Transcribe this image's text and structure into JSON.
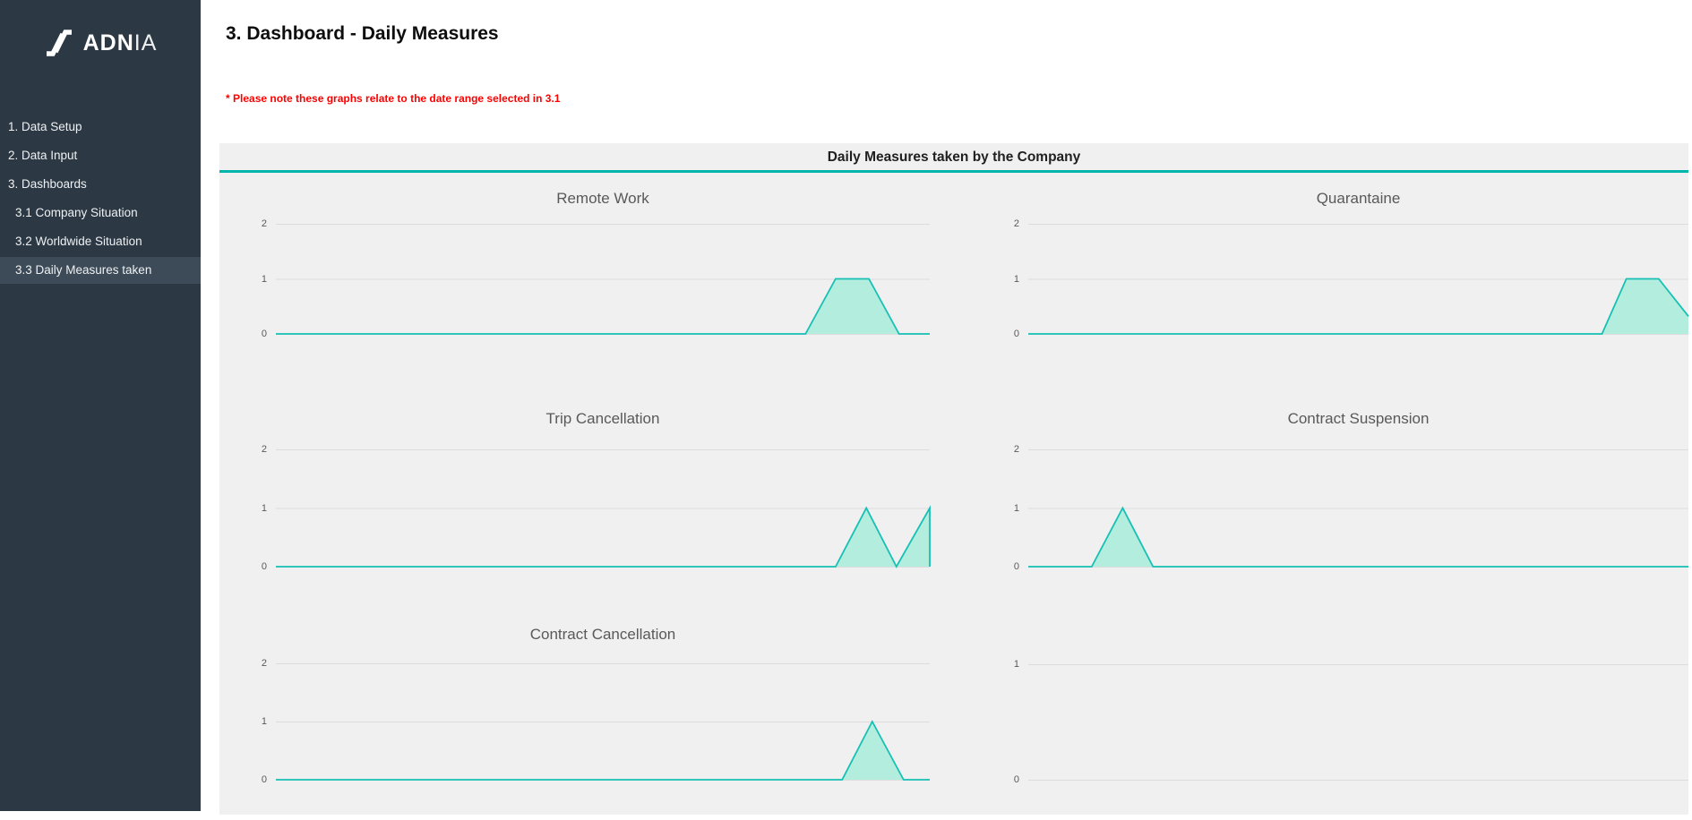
{
  "sidebar": {
    "logo": {
      "bold": "ADN",
      "light": "IA"
    },
    "items": [
      {
        "label": "1. Data Setup",
        "indent": false,
        "active": false
      },
      {
        "label": "2. Data Input",
        "indent": false,
        "active": false
      },
      {
        "label": "3. Dashboards",
        "indent": false,
        "active": false
      },
      {
        "label": "3.1 Company Situation",
        "indent": true,
        "active": false
      },
      {
        "label": "3.2 Worldwide Situation",
        "indent": true,
        "active": false
      },
      {
        "label": "3.3 Daily Measures taken",
        "indent": true,
        "active": true
      }
    ]
  },
  "header": {
    "title": "3. Dashboard - Daily Measures",
    "note": "* Please note these graphs relate to the date range selected in 3.1"
  },
  "panel": {
    "title": "Daily Measures taken by the Company"
  },
  "colors": {
    "sidebar_bg": "#2c3844",
    "sidebar_active_bg": "#3d4a57",
    "sidebar_text": "#eef1f3",
    "accent_teal": "#00b5ac",
    "series_stroke": "#16c0b4",
    "series_fill": "#b3edde",
    "gridline": "#dcdcdc",
    "panel_bg": "#f0f0f0",
    "chart_text": "#595959",
    "note_red": "#ff0000"
  },
  "chart_data": [
    {
      "type": "area",
      "title": "Remote Work",
      "yticks": [
        2,
        1,
        0
      ],
      "ylim": [
        0,
        2
      ],
      "grid": true,
      "legend": "none",
      "points": [
        [
          0,
          0
        ],
        [
          0.81,
          0
        ],
        [
          0.856,
          1
        ],
        [
          0.907,
          1
        ],
        [
          0.953,
          0
        ],
        [
          1,
          0
        ]
      ]
    },
    {
      "type": "area",
      "title": "Quarantaine",
      "yticks": [
        2,
        1,
        0
      ],
      "ylim": [
        0,
        2
      ],
      "grid": true,
      "legend": "none",
      "points": [
        [
          0,
          0
        ],
        [
          0.869,
          0
        ],
        [
          0.906,
          1
        ],
        [
          0.955,
          1
        ],
        [
          1,
          0.32
        ]
      ]
    },
    {
      "type": "area",
      "title": "Trip Cancellation",
      "yticks": [
        2,
        1,
        0
      ],
      "ylim": [
        0,
        2
      ],
      "grid": true,
      "legend": "none",
      "points": [
        [
          0,
          0
        ],
        [
          0.856,
          0
        ],
        [
          0.903,
          1
        ],
        [
          0.949,
          0
        ],
        [
          1,
          1
        ],
        [
          1,
          0
        ]
      ]
    },
    {
      "type": "area",
      "title": "Contract Suspension",
      "yticks": [
        2,
        1,
        0
      ],
      "ylim": [
        0,
        2
      ],
      "grid": true,
      "legend": "none",
      "points": [
        [
          0,
          0
        ],
        [
          0.096,
          0
        ],
        [
          0.143,
          1
        ],
        [
          0.189,
          0
        ],
        [
          1,
          0
        ]
      ]
    },
    {
      "type": "area",
      "title": "Contract Cancellation",
      "yticks": [
        2,
        1,
        0
      ],
      "ylim": [
        0,
        2
      ],
      "grid": true,
      "legend": "none",
      "points": [
        [
          0,
          0
        ],
        [
          0.866,
          0
        ],
        [
          0.912,
          1
        ],
        [
          0.96,
          0
        ],
        [
          1,
          0
        ]
      ]
    },
    {
      "type": "area",
      "title": "",
      "yticks": [
        1,
        0
      ],
      "ylim": [
        0,
        1
      ],
      "grid": true,
      "legend": "none",
      "points": []
    }
  ]
}
